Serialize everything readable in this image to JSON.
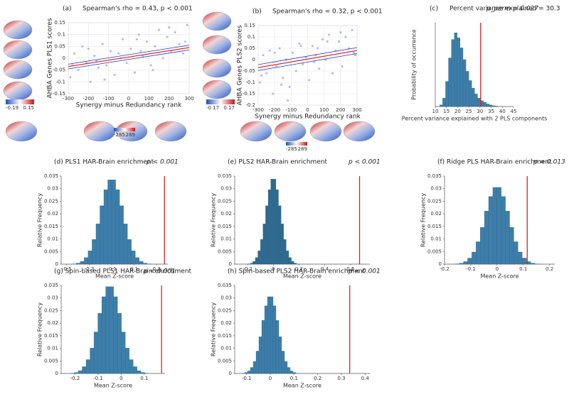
{
  "chart_data": [
    {
      "type": "scatter",
      "panel": "(a)",
      "title": "Spearman's rho = 0.43, p < 0.001",
      "xlabel": "Synergy minus Redundancy rank",
      "ylabel": "AHBA Genes PLS1 scores",
      "x": [
        -290,
        -270,
        -250,
        -230,
        -210,
        -190,
        -170,
        -150,
        -130,
        -110,
        -90,
        -70,
        -50,
        -30,
        -10,
        10,
        30,
        50,
        70,
        90,
        110,
        130,
        150,
        170,
        190,
        210,
        230,
        250,
        270,
        290,
        -280,
        -200,
        -120,
        -40,
        40,
        120,
        200,
        280,
        -160,
        60
      ],
      "y": [
        -0.08,
        0.02,
        -0.05,
        0.05,
        -0.02,
        -0.1,
        0.01,
        -0.04,
        0.06,
        -0.03,
        0.03,
        -0.07,
        0.02,
        0.08,
        -0.02,
        0.04,
        -0.06,
        0.1,
        0.01,
        0.07,
        -0.03,
        0.05,
        0.12,
        0.0,
        0.09,
        0.03,
        0.11,
        0.06,
        0.02,
        0.14,
        -0.03,
        0.04,
        -0.09,
        0.0,
        0.08,
        -0.05,
        0.13,
        0.07,
        -0.01,
        0.03
      ],
      "color": "#aab0ee",
      "fit": {
        "x": [
          -300,
          300
        ],
        "y": [
          -0.035,
          0.045
        ],
        "upper": [
          -0.025,
          0.055
        ],
        "lower": [
          -0.045,
          0.035
        ]
      },
      "xlim": [
        -300,
        300
      ],
      "xticks": [
        -300,
        -200,
        -100,
        0,
        100,
        200,
        300
      ],
      "ylim": [
        -0.15,
        0.15
      ],
      "yticks": [
        -0.15,
        -0.1,
        -0.05,
        0,
        0.05,
        0.1,
        0.15
      ],
      "grid": true,
      "colorbar_range": [
        -0.19,
        0.15
      ],
      "colorbar2_range": [
        -285,
        289
      ]
    },
    {
      "type": "scatter",
      "panel": "(b)",
      "title": "Spearman's rho = 0.32, p < 0.001",
      "xlabel": "Synergy minus Redundancy rank",
      "ylabel": "AHBA Genes PLS2 scores",
      "x": [
        -290,
        -270,
        -250,
        -230,
        -210,
        -190,
        -170,
        -150,
        -130,
        -110,
        -90,
        -70,
        -50,
        -30,
        -10,
        10,
        30,
        50,
        70,
        90,
        110,
        130,
        150,
        170,
        190,
        210,
        230,
        250,
        270,
        290,
        -280,
        -200,
        -120,
        -40,
        40,
        120,
        200,
        280,
        -160,
        60
      ],
      "y": [
        -0.1,
        0.02,
        -0.06,
        0.04,
        -0.15,
        -0.03,
        0.05,
        -0.08,
        0.0,
        -0.12,
        0.03,
        -0.05,
        0.07,
        -0.02,
        0.01,
        -0.09,
        0.06,
        0.02,
        -0.04,
        0.09,
        0.0,
        0.11,
        -0.06,
        0.04,
        0.08,
        -0.03,
        0.1,
        0.05,
        0.13,
        0.02,
        -0.07,
        0.03,
        -0.18,
        0.06,
        -0.01,
        0.08,
        0.12,
        0.03,
        -0.11,
        0.05
      ],
      "color": "#aab0ee",
      "fit": {
        "x": [
          -300,
          300
        ],
        "y": [
          -0.035,
          0.04
        ],
        "upper": [
          -0.022,
          0.053
        ],
        "lower": [
          -0.048,
          0.027
        ]
      },
      "xlim": [
        -300,
        300
      ],
      "xticks": [
        -300,
        -200,
        -100,
        0,
        100,
        200,
        300
      ],
      "ylim": [
        -0.2,
        0.15
      ],
      "yticks": [
        -0.2,
        -0.15,
        -0.1,
        -0.05,
        0,
        0.05,
        0.1,
        0.15
      ],
      "grid": true,
      "colorbar_range": [
        -0.17,
        0.17
      ],
      "colorbar2_range": [
        -285,
        289
      ]
    },
    {
      "type": "histogram",
      "panel": "(c)",
      "title": "Percent variance explained = 30.3",
      "annotation": "p_perm = 0.027",
      "xlabel": "Percent variance explained with 2 PLS components",
      "ylabel": "Probability of occurrence",
      "bins": [
        12,
        13.3,
        14.6,
        15.9,
        17.2,
        18.5,
        19.8,
        21.1,
        22.4,
        23.7,
        25,
        26.3,
        27.6,
        28.9,
        30.2,
        31.5,
        32.8,
        34.1,
        35.4,
        36.7,
        38
      ],
      "values": [
        0.002,
        0.01,
        0.03,
        0.058,
        0.08,
        0.088,
        0.082,
        0.07,
        0.056,
        0.042,
        0.031,
        0.022,
        0.015,
        0.01,
        0.007,
        0.005,
        0.003,
        0.002,
        0.001,
        0.0005
      ],
      "color": "#3d7eaa",
      "vline": 30.3,
      "vline_color": "#e0201b",
      "xlim": [
        10,
        45
      ],
      "xticks": [
        10,
        15,
        20,
        25,
        30,
        35,
        40,
        45
      ],
      "ylim": [
        0,
        0.1
      ]
    },
    {
      "type": "histogram",
      "title": "(d) PLS1 HAR-Brain enrichment",
      "annotation": "p < 0.001",
      "xlabel": "Mean Z-score",
      "ylabel": "Relative Frequency",
      "bins": [
        -0.45,
        -0.415,
        -0.38,
        -0.345,
        -0.31,
        -0.275,
        -0.24,
        -0.205,
        -0.17,
        -0.135,
        -0.1,
        -0.065,
        -0.03,
        0.005,
        0.04,
        0.075,
        0.11,
        0.145,
        0.18,
        0.215,
        0.25
      ],
      "values": [
        0.0001,
        0.0004,
        0.0011,
        0.0026,
        0.0053,
        0.0098,
        0.016,
        0.0232,
        0.0296,
        0.0335,
        0.0335,
        0.0296,
        0.0232,
        0.016,
        0.0098,
        0.0053,
        0.0026,
        0.0011,
        0.0004,
        0.0001
      ],
      "color": "#3d7eaa",
      "vline": 0.37,
      "vline_color": "#e0201b",
      "xlim": [
        -0.55,
        0.4
      ],
      "xticks": [
        -0.5,
        -0.3,
        -0.1,
        0.1,
        0.3
      ],
      "ylim": [
        0,
        0.035
      ],
      "yticks": [
        0,
        0.005,
        0.01,
        0.015,
        0.02,
        0.025,
        0.03,
        0.035
      ]
    },
    {
      "type": "histogram",
      "title": "(e) PLS2 HAR-Brain enrichment",
      "annotation": "p < 0.001",
      "xlabel": "Mean Z-score",
      "ylabel": "Relative Frequency",
      "bins": [
        -0.2,
        -0.18,
        -0.16,
        -0.14,
        -0.12,
        -0.1,
        -0.08,
        -0.06,
        -0.04,
        -0.02,
        0,
        0.02,
        0.04,
        0.06,
        0.08,
        0.1,
        0.12,
        0.14,
        0.16,
        0.18,
        0.2
      ],
      "values": [
        0.0001,
        0.0004,
        0.0011,
        0.0026,
        0.0053,
        0.0098,
        0.016,
        0.0232,
        0.0296,
        0.0338,
        0.0338,
        0.0296,
        0.0232,
        0.016,
        0.0098,
        0.0053,
        0.0026,
        0.0011,
        0.0004,
        0.0001
      ],
      "color": "#2f6a8f",
      "vline": 0.67,
      "vline_color": "#e0201b",
      "xlim": [
        -0.3,
        0.75
      ],
      "xticks": [
        -0.2,
        0,
        0.2,
        0.4,
        0.6
      ],
      "ylim": [
        0,
        0.035
      ],
      "yticks": [
        0,
        0.005,
        0.01,
        0.015,
        0.02,
        0.025,
        0.03,
        0.035
      ]
    },
    {
      "type": "histogram",
      "title": "(f) Ridge PLS HAR-Brain enrichment",
      "annotation": "p = 0.013",
      "xlabel": "Mean Z-score",
      "ylabel": "Relative Frequency",
      "bins": [
        -0.16,
        -0.144,
        -0.128,
        -0.112,
        -0.096,
        -0.08,
        -0.064,
        -0.048,
        -0.032,
        -0.016,
        0,
        0.016,
        0.032,
        0.048,
        0.064,
        0.08,
        0.096,
        0.112,
        0.128,
        0.144,
        0.16
      ],
      "values": [
        0.0001,
        0.0004,
        0.001,
        0.0024,
        0.0048,
        0.0089,
        0.0146,
        0.0211,
        0.0269,
        0.0305,
        0.0305,
        0.0269,
        0.0211,
        0.0146,
        0.0089,
        0.0048,
        0.0024,
        0.001,
        0.0004,
        0.0001
      ],
      "color": "#3d7eaa",
      "vline": 0.115,
      "vline_color": "#e0201b",
      "xlim": [
        -0.2,
        0.22
      ],
      "xticks": [
        -0.2,
        -0.1,
        0,
        0.1,
        0.2
      ],
      "ylim": [
        0,
        0.035
      ],
      "yticks": [
        0,
        0.005,
        0.01,
        0.015,
        0.02,
        0.025,
        0.03,
        0.035
      ]
    },
    {
      "type": "histogram",
      "title": "(g) Spin-based PLS1 HAR-Brain enrichment",
      "annotation": "p < 0.001",
      "xlabel": "Mean Z-score",
      "ylabel": "Relative Frequency",
      "bins": [
        -0.22,
        -0.203,
        -0.186,
        -0.169,
        -0.152,
        -0.135,
        -0.118,
        -0.101,
        -0.084,
        -0.067,
        -0.05,
        -0.033,
        -0.016,
        0.001,
        0.018,
        0.035,
        0.052,
        0.069,
        0.086,
        0.103,
        0.12
      ],
      "values": [
        0.0001,
        0.0004,
        0.0011,
        0.0027,
        0.0055,
        0.0101,
        0.0165,
        0.0239,
        0.0305,
        0.0345,
        0.0345,
        0.0305,
        0.0239,
        0.0165,
        0.0101,
        0.0055,
        0.0027,
        0.0011,
        0.0004,
        0.0001
      ],
      "color": "#3d7eaa",
      "vline": 0.175,
      "vline_color": "#e0201b",
      "xlim": [
        -0.26,
        0.19
      ],
      "xticks": [
        -0.2,
        -0.1,
        0,
        0.1
      ],
      "ylim": [
        0,
        0.035
      ],
      "yticks": [
        0,
        0.005,
        0.01,
        0.015,
        0.02,
        0.025,
        0.03,
        0.035
      ]
    },
    {
      "type": "histogram",
      "title": "(h) Spin-based PLS2 HAR-Brain enrichment",
      "annotation": "p < 0.001",
      "xlabel": "Mean Z-score",
      "ylabel": "Relative Frequency",
      "bins": [
        -0.12,
        -0.108,
        -0.096,
        -0.084,
        -0.072,
        -0.06,
        -0.048,
        -0.036,
        -0.024,
        -0.012,
        0,
        0.012,
        0.024,
        0.036,
        0.048,
        0.06,
        0.072,
        0.084,
        0.096,
        0.108,
        0.12
      ],
      "values": [
        0.0001,
        0.0004,
        0.001,
        0.0024,
        0.0048,
        0.0089,
        0.0146,
        0.0211,
        0.0269,
        0.0305,
        0.0305,
        0.0269,
        0.0211,
        0.0146,
        0.0089,
        0.0048,
        0.0024,
        0.001,
        0.0004,
        0.0001
      ],
      "color": "#3d7eaa",
      "vline": 0.335,
      "vline_color": "#e0201b",
      "xlim": [
        -0.15,
        0.42
      ],
      "xticks": [
        -0.1,
        0,
        0.1,
        0.2,
        0.3,
        0.4
      ],
      "ylim": [
        0,
        0.035
      ],
      "yticks": [
        0,
        0.005,
        0.01,
        0.015,
        0.02,
        0.025,
        0.03,
        0.035
      ]
    }
  ]
}
